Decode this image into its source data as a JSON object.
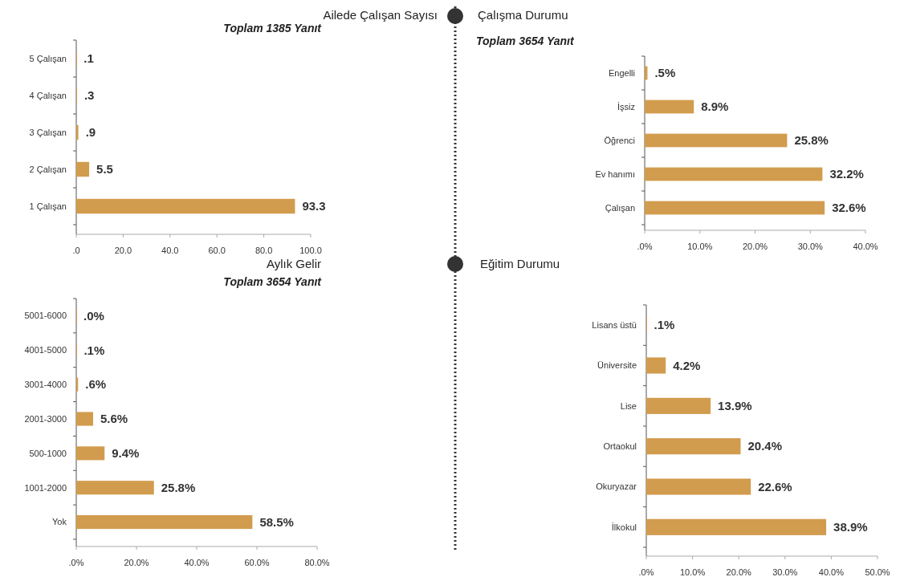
{
  "chart_data": [
    {
      "type": "bar",
      "orientation": "horizontal",
      "title": "Ailede Çalışan Sayısı",
      "subtitle": "Toplam 1385 Yanıt",
      "categories": [
        "5 Çalışan",
        "4 Çalışan",
        "3 Çalışan",
        "2 Çalışan",
        "1 Çalışan"
      ],
      "values": [
        0.1,
        0.3,
        0.9,
        5.5,
        93.3
      ],
      "value_labels": [
        ".1",
        ".3",
        ".9",
        "5.5",
        "93.3"
      ],
      "color": "#d29c4e",
      "xlim": [
        0,
        100
      ],
      "xticks": [
        {
          "value": 0,
          "label": ".0"
        },
        {
          "value": 20,
          "label": "20.0"
        },
        {
          "value": 40,
          "label": "40.0"
        },
        {
          "value": 60,
          "label": "60.0"
        },
        {
          "value": 80,
          "label": "80.0"
        },
        {
          "value": 100,
          "label": "100.0"
        }
      ],
      "grid": false,
      "legend": false
    },
    {
      "type": "bar",
      "orientation": "horizontal",
      "title": "Çalışma Durumu",
      "subtitle": "Toplam 3654 Yanıt",
      "categories": [
        "Engelli",
        "İşsiz",
        "Öğrenci",
        "Ev hanımı",
        "Çalışan"
      ],
      "values": [
        0.5,
        8.9,
        25.8,
        32.2,
        32.6
      ],
      "value_labels": [
        ".5%",
        "8.9%",
        "25.8%",
        "32.2%",
        "32.6%"
      ],
      "color": "#d29c4e",
      "xlim": [
        0,
        40
      ],
      "xticks": [
        {
          "value": 0,
          "label": ".0%"
        },
        {
          "value": 10,
          "label": "10.0%"
        },
        {
          "value": 20,
          "label": "20.0%"
        },
        {
          "value": 30,
          "label": "30.0%"
        },
        {
          "value": 40,
          "label": "40.0%"
        }
      ],
      "grid": false,
      "legend": false
    },
    {
      "type": "bar",
      "orientation": "horizontal",
      "title": "Aylık Gelir",
      "subtitle": "Toplam 3654 Yanıt",
      "categories": [
        "5001-6000",
        "4001-5000",
        "3001-4000",
        "2001-3000",
        "500-1000",
        "1001-2000",
        "Yok"
      ],
      "values": [
        0.0,
        0.1,
        0.6,
        5.6,
        9.4,
        25.8,
        58.5
      ],
      "value_labels": [
        ".0%",
        ".1%",
        ".6%",
        "5.6%",
        "9.4%",
        "25.8%",
        "58.5%"
      ],
      "color": "#d29c4e",
      "xlim": [
        0,
        80
      ],
      "xticks": [
        {
          "value": 0,
          "label": ".0%"
        },
        {
          "value": 20,
          "label": "20.0%"
        },
        {
          "value": 40,
          "label": "40.0%"
        },
        {
          "value": 60,
          "label": "60.0%"
        },
        {
          "value": 80,
          "label": "80.0%"
        }
      ],
      "grid": false,
      "legend": false
    },
    {
      "type": "bar",
      "orientation": "horizontal",
      "title": "Eğitim Durumu",
      "categories": [
        "Lisans üstü",
        "Üniversite",
        "Lise",
        "Ortaokul",
        "Okuryazar",
        "İlkokul"
      ],
      "values": [
        0.1,
        4.2,
        13.9,
        20.4,
        22.6,
        38.9
      ],
      "value_labels": [
        ".1%",
        "4.2%",
        "13.9%",
        "20.4%",
        "22.6%",
        "38.9%"
      ],
      "color": "#d29c4e",
      "xlim": [
        0,
        50
      ],
      "xticks": [
        {
          "value": 0,
          "label": ".0%"
        },
        {
          "value": 10,
          "label": "10.0%"
        },
        {
          "value": 20,
          "label": "20.0%"
        },
        {
          "value": 30,
          "label": "30.0%"
        },
        {
          "value": 40,
          "label": "40.0%"
        },
        {
          "value": 50,
          "label": "50.0%"
        }
      ],
      "grid": false,
      "legend": false
    }
  ]
}
